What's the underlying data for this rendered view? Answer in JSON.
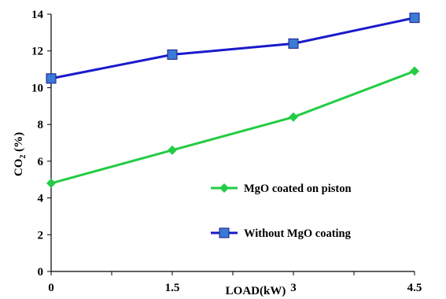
{
  "chart_data": {
    "type": "line",
    "xlabel": "LOAD(kW)",
    "ylabel_main": "CO",
    "ylabel_sub": "2",
    "ylabel_unit": " (%)",
    "x_ticks": [
      "0",
      "1.5",
      "3",
      "4.5"
    ],
    "x_tick_values": [
      0,
      1.5,
      3,
      4.5
    ],
    "y_ticks": [
      "0",
      "2",
      "4",
      "6",
      "8",
      "10",
      "12",
      "14"
    ],
    "ylim": [
      0,
      14
    ],
    "xlim": [
      0,
      4.5
    ],
    "grid": false,
    "legend_position": "inside-bottom-right",
    "series": [
      {
        "name": "MgO coated on piston",
        "color": "#22cc44",
        "marker": "diamond",
        "x": [
          0,
          1.5,
          3,
          4.5
        ],
        "values": [
          4.8,
          6.6,
          8.4,
          10.9
        ]
      },
      {
        "name": "Without MgO coating",
        "color": "#1a1acc",
        "marker": "square",
        "x": [
          0,
          1.5,
          3,
          4.5
        ],
        "values": [
          10.5,
          11.8,
          12.4,
          13.8
        ]
      }
    ]
  }
}
